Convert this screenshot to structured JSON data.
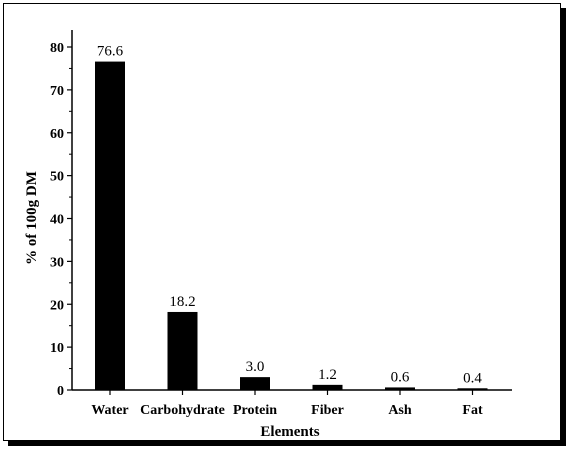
{
  "chart_data": {
    "type": "bar",
    "title": "",
    "xlabel": "Elements",
    "ylabel": "% of 100g DM",
    "categories": [
      "Water",
      "Carbohydrate",
      "Protein",
      "Fiber",
      "Ash",
      "Fat"
    ],
    "values": [
      76.6,
      18.2,
      3.0,
      1.2,
      0.6,
      0.4
    ],
    "data_labels": [
      "76.6",
      "18.2",
      "3.0",
      "1.2",
      "0.6",
      "0.4"
    ],
    "ylim": [
      0,
      80
    ],
    "yticks": [
      0,
      10,
      20,
      30,
      40,
      50,
      60,
      70,
      80
    ],
    "grid": false,
    "legend": "none",
    "bar_color": "#000000"
  }
}
